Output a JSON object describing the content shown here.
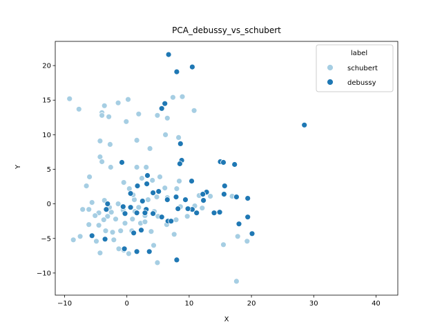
{
  "chart_data": {
    "type": "scatter",
    "title": "PCA_debussy_vs_schubert",
    "xlabel": "X",
    "ylabel": "Y",
    "xlim": [
      -11.5,
      43.5
    ],
    "ylim": [
      -13.2,
      23.5
    ],
    "xticks": [
      -10,
      0,
      10,
      20,
      30,
      40
    ],
    "yticks": [
      -10,
      -5,
      0,
      5,
      10,
      15,
      20
    ],
    "grid": false,
    "legend": {
      "title": "label",
      "placement": "top-right"
    },
    "series": [
      {
        "name": "schubert",
        "color": "#a6cee3",
        "points": [
          [
            -9.2,
            15.2
          ],
          [
            -7.7,
            13.7
          ],
          [
            -4.0,
            13.2
          ],
          [
            -3.6,
            14.2
          ],
          [
            -1.4,
            14.6
          ],
          [
            0.2,
            15.1
          ],
          [
            7.4,
            15.4
          ],
          [
            8.9,
            15.5
          ],
          [
            10.8,
            13.5
          ],
          [
            -4.0,
            12.8
          ],
          [
            -2.9,
            12.6
          ],
          [
            -0.1,
            11.9
          ],
          [
            1.9,
            13.0
          ],
          [
            4.9,
            12.8
          ],
          [
            6.5,
            12.4
          ],
          [
            6.2,
            10.0
          ],
          [
            -4.3,
            9.1
          ],
          [
            -2.7,
            8.6
          ],
          [
            1.6,
            9.2
          ],
          [
            3.7,
            8.0
          ],
          [
            8.3,
            9.6
          ],
          [
            -4.3,
            6.8
          ],
          [
            -4.0,
            6.1
          ],
          [
            -2.6,
            5.3
          ],
          [
            -6.0,
            3.9
          ],
          [
            -6.5,
            2.6
          ],
          [
            1.6,
            5.3
          ],
          [
            3.1,
            5.3
          ],
          [
            5.3,
            3.9
          ],
          [
            8.4,
            3.3
          ],
          [
            -0.5,
            3.1
          ],
          [
            2.4,
            3.7
          ],
          [
            4.1,
            3.4
          ],
          [
            6.1,
            2.3
          ],
          [
            8.0,
            2.2
          ],
          [
            0.4,
            2.2
          ],
          [
            -5.6,
            0.2
          ],
          [
            -7.1,
            -0.8
          ],
          [
            -6.1,
            -0.8
          ],
          [
            -3.6,
            0.5
          ],
          [
            -4.5,
            -1.3
          ],
          [
            -3.1,
            -1.8
          ],
          [
            -1.4,
            0.0
          ],
          [
            -0.6,
            -0.9
          ],
          [
            0.6,
            -0.5
          ],
          [
            1.2,
            0.6
          ],
          [
            -2.5,
            -1.2
          ],
          [
            -3.7,
            -2.3
          ],
          [
            -4.5,
            -3.1
          ],
          [
            -6.1,
            -3.0
          ],
          [
            -8.6,
            -5.2
          ],
          [
            -7.5,
            -4.7
          ],
          [
            -4.9,
            -5.4
          ],
          [
            -4.3,
            -7.1
          ],
          [
            -1.3,
            -6.5
          ],
          [
            -0.5,
            -6.7
          ],
          [
            0.3,
            -7.2
          ],
          [
            -2.3,
            -4.1
          ],
          [
            -1.0,
            -3.9
          ],
          [
            -0.3,
            -2.8
          ],
          [
            0.8,
            -3.9
          ],
          [
            1.3,
            -1.1
          ],
          [
            2.2,
            -2.8
          ],
          [
            2.9,
            -1.7
          ],
          [
            3.4,
            0.6
          ],
          [
            4.4,
            -1.1
          ],
          [
            5.0,
            -1.8
          ],
          [
            3.9,
            -4.0
          ],
          [
            4.3,
            -6.0
          ],
          [
            4.9,
            -8.5
          ],
          [
            6.4,
            -3.0
          ],
          [
            7.6,
            -4.4
          ],
          [
            7.9,
            -2.3
          ],
          [
            8.6,
            -0.4
          ],
          [
            9.7,
            -1.8
          ],
          [
            10.9,
            -0.3
          ],
          [
            12.1,
            -0.6
          ],
          [
            11.6,
            1.2
          ],
          [
            13.4,
            1.1
          ],
          [
            15.5,
            -5.9
          ],
          [
            17.8,
            -4.7
          ],
          [
            19.3,
            -5.4
          ],
          [
            17.6,
            -11.2
          ],
          [
            16.9,
            1.1
          ],
          [
            2.9,
            -2.6
          ],
          [
            1.9,
            -0.5
          ],
          [
            -1.8,
            -2.2
          ],
          [
            -0.3,
            -1.5
          ],
          [
            0.9,
            -2.2
          ],
          [
            -3.4,
            -3.9
          ],
          [
            -2.1,
            -5.2
          ],
          [
            -5.1,
            -1.7
          ],
          [
            -2.8,
            -0.5
          ],
          [
            6.5,
            0.9
          ],
          [
            4.8,
            1.0
          ],
          [
            1.0,
            1.3
          ]
        ]
      },
      {
        "name": "debussy",
        "color": "#1f78b4",
        "points": [
          [
            6.7,
            21.6
          ],
          [
            10.5,
            19.8
          ],
          [
            8.0,
            19.1
          ],
          [
            6.1,
            14.5
          ],
          [
            5.6,
            13.8
          ],
          [
            28.5,
            11.4
          ],
          [
            8.6,
            8.7
          ],
          [
            8.8,
            6.3
          ],
          [
            8.5,
            5.8
          ],
          [
            -0.8,
            6.0
          ],
          [
            3.3,
            4.1
          ],
          [
            1.7,
            2.6
          ],
          [
            0.6,
            1.5
          ],
          [
            3.2,
            2.9
          ],
          [
            4.2,
            1.6
          ],
          [
            5.1,
            1.8
          ],
          [
            7.9,
            1.0
          ],
          [
            10.4,
            3.3
          ],
          [
            15.0,
            6.1
          ],
          [
            15.5,
            6.0
          ],
          [
            17.3,
            5.7
          ],
          [
            15.7,
            2.6
          ],
          [
            15.6,
            1.4
          ],
          [
            17.6,
            1.0
          ],
          [
            19.4,
            0.8
          ],
          [
            12.8,
            1.7
          ],
          [
            12.2,
            1.4
          ],
          [
            12.3,
            0.5
          ],
          [
            14.0,
            -1.3
          ],
          [
            14.9,
            -1.2
          ],
          [
            10.5,
            -0.8
          ],
          [
            11.2,
            -1.3
          ],
          [
            8.2,
            -0.7
          ],
          [
            6.6,
            -2.5
          ],
          [
            7.1,
            -2.5
          ],
          [
            9.8,
            -0.7
          ],
          [
            9.4,
            0.6
          ],
          [
            6.5,
            0.6
          ],
          [
            18.0,
            -2.9
          ],
          [
            19.4,
            -1.9
          ],
          [
            20.1,
            -4.3
          ],
          [
            3.1,
            -0.8
          ],
          [
            1.6,
            -1.3
          ],
          [
            -0.3,
            -1.4
          ],
          [
            -0.6,
            -0.4
          ],
          [
            0.6,
            -0.5
          ],
          [
            -3.1,
            0.0
          ],
          [
            -3.3,
            -0.8
          ],
          [
            2.3,
            -3.8
          ],
          [
            3.6,
            -6.9
          ],
          [
            1.1,
            -4.2
          ],
          [
            -0.4,
            -6.5
          ],
          [
            1.6,
            -6.9
          ],
          [
            -3.5,
            -5.1
          ],
          [
            -5.6,
            -4.6
          ],
          [
            8.0,
            -8.1
          ],
          [
            4.2,
            -1.4
          ],
          [
            5.6,
            -1.9
          ],
          [
            2.9,
            -1.3
          ],
          [
            2.5,
            0.4
          ]
        ]
      }
    ]
  },
  "legend_title": "label",
  "legend_items": [
    "schubert",
    "debussy"
  ],
  "colors": {
    "schubert": "#a6cee3",
    "debussy": "#1f78b4",
    "axis": "#000000"
  }
}
